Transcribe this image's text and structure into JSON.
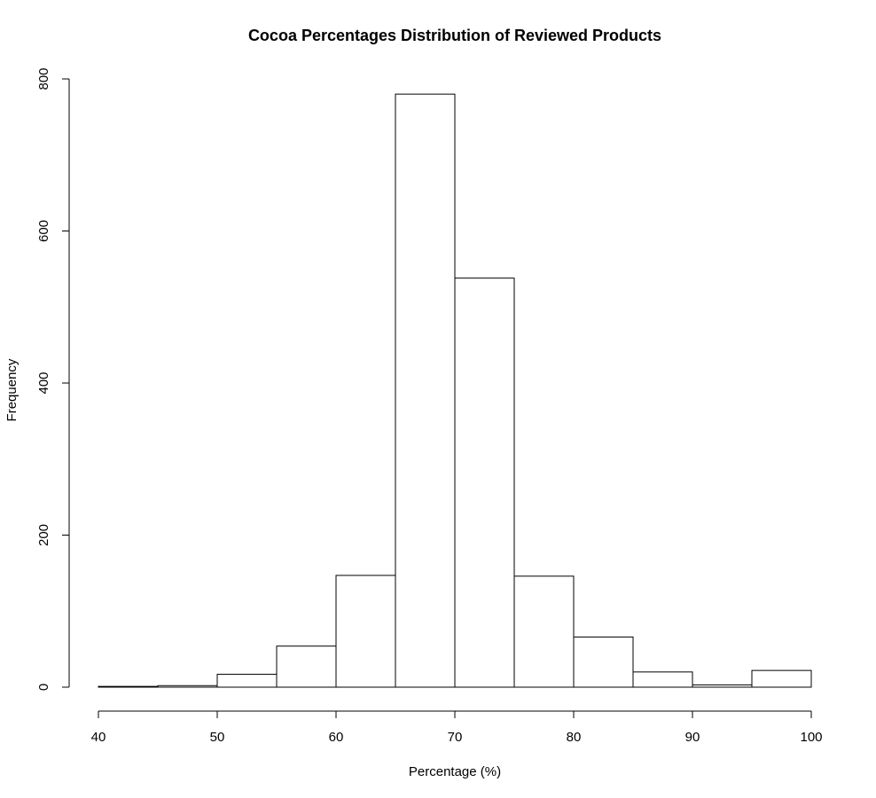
{
  "chart_data": {
    "type": "bar",
    "title": "Cocoa Percentages Distribution of Reviewed Products",
    "xlabel": "Percentage (%)",
    "ylabel": "Frequency",
    "bins": [
      {
        "start": 40,
        "end": 45,
        "count": 1
      },
      {
        "start": 45,
        "end": 50,
        "count": 2
      },
      {
        "start": 50,
        "end": 55,
        "count": 17
      },
      {
        "start": 55,
        "end": 60,
        "count": 54
      },
      {
        "start": 60,
        "end": 65,
        "count": 147
      },
      {
        "start": 65,
        "end": 70,
        "count": 780
      },
      {
        "start": 70,
        "end": 75,
        "count": 538
      },
      {
        "start": 75,
        "end": 80,
        "count": 146
      },
      {
        "start": 80,
        "end": 85,
        "count": 66
      },
      {
        "start": 85,
        "end": 90,
        "count": 20
      },
      {
        "start": 90,
        "end": 95,
        "count": 3
      },
      {
        "start": 95,
        "end": 100,
        "count": 22
      }
    ],
    "xlim": [
      40,
      100
    ],
    "ylim": [
      0,
      800
    ],
    "x_ticks": [
      "40",
      "50",
      "60",
      "70",
      "80",
      "90",
      "100"
    ],
    "y_ticks": [
      "0",
      "200",
      "400",
      "600",
      "800"
    ],
    "grid": false
  }
}
